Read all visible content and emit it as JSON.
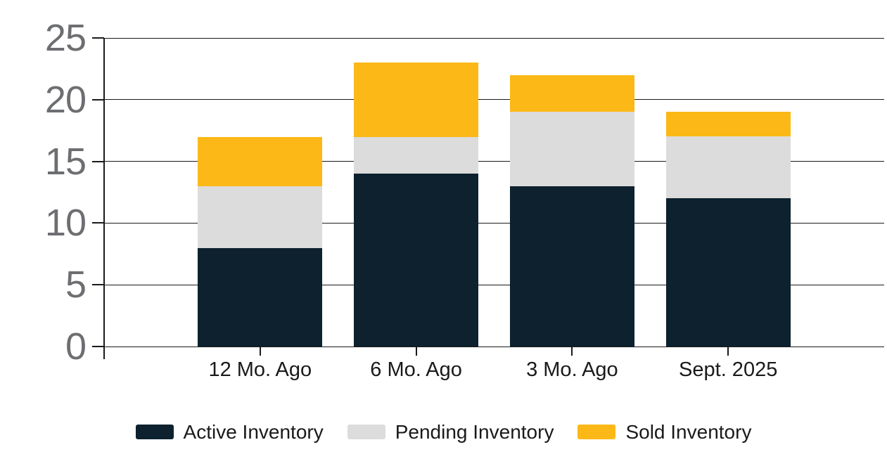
{
  "chart_data": {
    "type": "bar",
    "stacked": true,
    "title": "",
    "xlabel": "",
    "ylabel": "",
    "categories": [
      "12 Mo. Ago",
      "6 Mo. Ago",
      "3 Mo. Ago",
      "Sept. 2025"
    ],
    "series": [
      {
        "name": "Active Inventory",
        "values": [
          8,
          14,
          13,
          12
        ],
        "color": "#0d212e"
      },
      {
        "name": "Pending Inventory",
        "values": [
          5,
          3,
          6,
          5
        ],
        "color": "#dcdcdc"
      },
      {
        "name": "Sold Inventory",
        "values": [
          4,
          6,
          3,
          2
        ],
        "color": "#fbb817"
      }
    ],
    "stack_totals": [
      17,
      23,
      22,
      19
    ],
    "ylim": [
      0,
      25
    ],
    "yticks": [
      0,
      5,
      10,
      15,
      20,
      25
    ],
    "grid": true,
    "legend_position": "bottom",
    "colors": {
      "background": "#ffffff",
      "gridline": "#1a1a1a",
      "axis_line": "#1a1a1a",
      "y_tick_label": "#6d6e71",
      "x_tick_label": "#1a1a1a",
      "legend_text": "#1a1a1a"
    }
  }
}
